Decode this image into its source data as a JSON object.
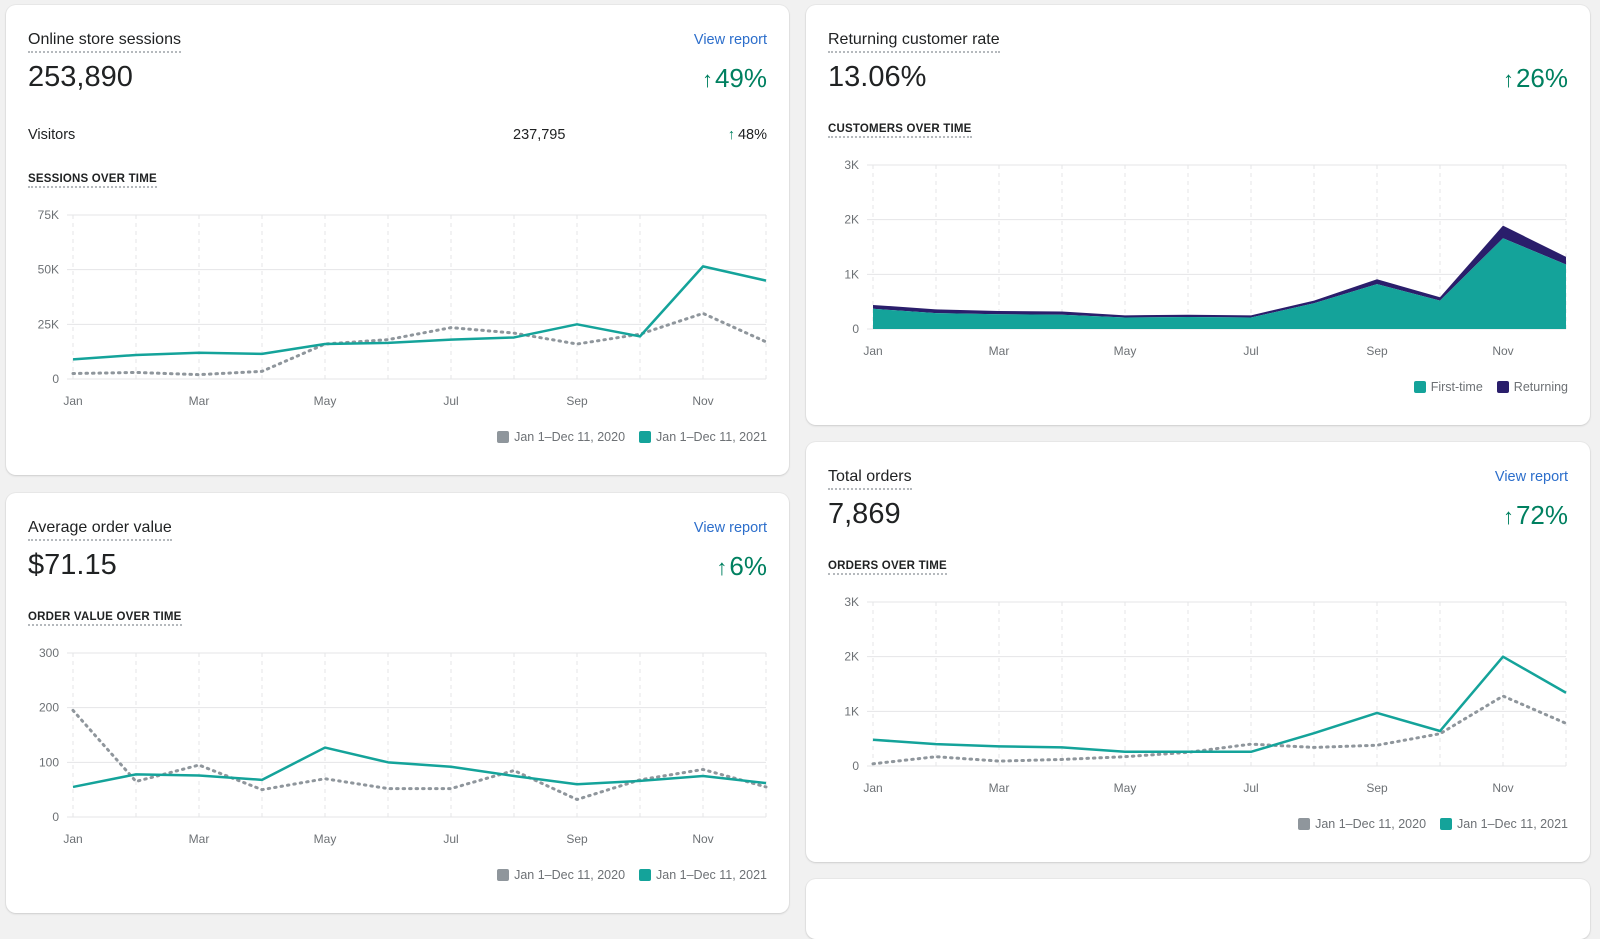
{
  "colors": {
    "primary": "#14a39a",
    "secondary": "#8f969c",
    "returning": "#2a1e6b",
    "positive": "#008060",
    "link": "#2c6ecb"
  },
  "sessions": {
    "title": "Online store sessions",
    "link": "View report",
    "value": "253,890",
    "change": "49%",
    "visitors_label": "Visitors",
    "visitors_value": "237,795",
    "visitors_change": "48%",
    "subtitle": "SESSIONS OVER TIME",
    "legend": [
      "Jan 1–Dec 11, 2020",
      "Jan 1–Dec 11, 2021"
    ]
  },
  "returning": {
    "title": "Returning customer rate",
    "value": "13.06%",
    "change": "26%",
    "subtitle": "CUSTOMERS OVER TIME",
    "legend": [
      "First-time",
      "Returning"
    ]
  },
  "aov": {
    "title": "Average order value",
    "link": "View report",
    "value": "$71.15",
    "change": "6%",
    "subtitle": "ORDER VALUE OVER TIME",
    "legend": [
      "Jan 1–Dec 11, 2020",
      "Jan 1–Dec 11, 2021"
    ]
  },
  "orders": {
    "title": "Total orders",
    "link": "View report",
    "value": "7,869",
    "change": "72%",
    "subtitle": "ORDERS OVER TIME",
    "legend": [
      "Jan 1–Dec 11, 2020",
      "Jan 1–Dec 11, 2021"
    ]
  },
  "chart_data": [
    {
      "id": "sessions",
      "type": "line",
      "x_labels": [
        "Jan",
        "Mar",
        "May",
        "Jul",
        "Sep",
        "Nov"
      ],
      "y_ticks": [
        "0",
        "25K",
        "50K",
        "75K"
      ],
      "ylim": [
        0,
        75000
      ],
      "grid": true,
      "legend_position": "bottom-right",
      "series": [
        {
          "name": "Jan 1–Dec 11, 2020",
          "style": "dotted",
          "values": [
            2500,
            3000,
            2000,
            3500,
            16000,
            18000,
            23500,
            21000,
            16000,
            20500,
            30000,
            17000
          ]
        },
        {
          "name": "Jan 1–Dec 11, 2021",
          "style": "solid",
          "values": [
            9000,
            11000,
            12000,
            11500,
            16000,
            16500,
            18000,
            19000,
            25000,
            19500,
            51500,
            45000
          ]
        }
      ]
    },
    {
      "id": "returning",
      "type": "area",
      "stacked": true,
      "x_labels": [
        "Jan",
        "Mar",
        "May",
        "Jul",
        "Sep",
        "Nov"
      ],
      "y_ticks": [
        "0",
        "1K",
        "2K",
        "3K"
      ],
      "ylim": [
        0,
        3000
      ],
      "grid": true,
      "legend_position": "bottom-right",
      "series": [
        {
          "name": "First-time",
          "values": [
            370,
            290,
            270,
            260,
            210,
            220,
            210,
            470,
            820,
            520,
            1660,
            1180
          ]
        },
        {
          "name": "Returning",
          "values": [
            70,
            70,
            60,
            60,
            40,
            40,
            40,
            50,
            90,
            60,
            230,
            140
          ]
        }
      ]
    },
    {
      "id": "aov",
      "type": "line",
      "x_labels": [
        "Jan",
        "Mar",
        "May",
        "Jul",
        "Sep",
        "Nov"
      ],
      "y_ticks": [
        "0",
        "100",
        "200",
        "300"
      ],
      "ylim": [
        0,
        300
      ],
      "grid": true,
      "legend_position": "bottom-right",
      "series": [
        {
          "name": "Jan 1–Dec 11, 2020",
          "style": "dotted",
          "values": [
            195,
            65,
            95,
            50,
            70,
            52,
            52,
            85,
            32,
            68,
            87,
            55
          ]
        },
        {
          "name": "Jan 1–Dec 11, 2021",
          "style": "solid",
          "values": [
            55,
            78,
            76,
            68,
            127,
            100,
            92,
            75,
            60,
            66,
            75,
            62
          ]
        }
      ]
    },
    {
      "id": "orders",
      "type": "line",
      "x_labels": [
        "Jan",
        "Mar",
        "May",
        "Jul",
        "Sep",
        "Nov"
      ],
      "y_ticks": [
        "0",
        "1K",
        "2K",
        "3K"
      ],
      "ylim": [
        0,
        3000
      ],
      "grid": true,
      "legend_position": "bottom-right",
      "series": [
        {
          "name": "Jan 1–Dec 11, 2020",
          "style": "dotted",
          "values": [
            40,
            170,
            90,
            120,
            170,
            250,
            400,
            340,
            380,
            590,
            1280,
            780
          ]
        },
        {
          "name": "Jan 1–Dec 11, 2021",
          "style": "solid",
          "values": [
            480,
            400,
            360,
            340,
            260,
            260,
            260,
            600,
            970,
            640,
            2000,
            1340
          ]
        }
      ]
    }
  ]
}
